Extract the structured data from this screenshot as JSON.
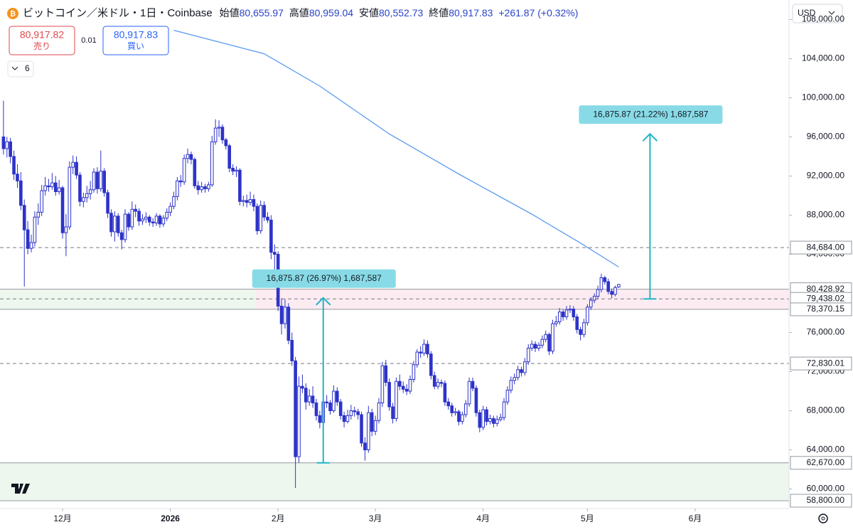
{
  "header": {
    "title": "ビットコイン／米ドル・1日・Coinbase",
    "open_label": "始値",
    "open": "80,655.97",
    "high_label": "高値",
    "high": "80,959.04",
    "low_label": "安値",
    "low": "80,552.73",
    "close_label": "終値",
    "close": "80,917.83",
    "change": "+261.87 (+0.32%)",
    "currency": "USD"
  },
  "order": {
    "sell_price": "80,917.82",
    "sell_label": "売り",
    "spread": "0.01",
    "buy_price": "80,917.83",
    "buy_label": "買い",
    "indicators": "6"
  },
  "chart_data": {
    "type": "candlestick",
    "up_color": "#ffffff",
    "down_color": "#2d33c8",
    "outline_color": "#2d33c8",
    "ylim": [
      58000,
      110000
    ],
    "yticks": [
      {
        "value": 60000,
        "label": "60,000.00"
      },
      {
        "value": 64000,
        "label": "64,000.00"
      },
      {
        "value": 68000,
        "label": "68,000.00"
      },
      {
        "value": 72000,
        "label": "72,000.00"
      },
      {
        "value": 76000,
        "label": "76,000.00"
      },
      {
        "value": 84000,
        "label": "84,000.00"
      },
      {
        "value": 88000,
        "label": "88,000.00"
      },
      {
        "value": 92000,
        "label": "92,000.00"
      },
      {
        "value": 96000,
        "label": "96,000.00"
      },
      {
        "value": 100000,
        "label": "100,000.00"
      },
      {
        "value": 104000,
        "label": "104,000.00"
      },
      {
        "value": 108000,
        "label": "108,000.00"
      }
    ],
    "xlim": [
      -1,
      226
    ],
    "xticks": [
      {
        "value": 17,
        "label": "12月"
      },
      {
        "value": 48,
        "label": "2026"
      },
      {
        "value": 79,
        "label": "2月"
      },
      {
        "value": 107,
        "label": "3月"
      },
      {
        "value": 138,
        "label": "4月"
      },
      {
        "value": 168,
        "label": "5月"
      },
      {
        "value": 199,
        "label": "6月"
      }
    ],
    "candles": [
      [
        96000,
        99700,
        94200,
        94800
      ],
      [
        94800,
        96000,
        93900,
        95500
      ],
      [
        95500,
        95900,
        93300,
        94000
      ],
      [
        94000,
        94600,
        91600,
        92200
      ],
      [
        92200,
        93200,
        90800,
        91500
      ],
      [
        91500,
        92400,
        88500,
        89000
      ],
      [
        89000,
        89600,
        80700,
        86500
      ],
      [
        86500,
        87400,
        84000,
        84600
      ],
      [
        84600,
        86000,
        84200,
        85200
      ],
      [
        85200,
        88400,
        84800,
        87800
      ],
      [
        87800,
        89200,
        87000,
        88300
      ],
      [
        88300,
        91100,
        87900,
        90500
      ],
      [
        90500,
        91900,
        90000,
        91000
      ],
      [
        91000,
        91700,
        90400,
        90900
      ],
      [
        90900,
        92300,
        90600,
        91300
      ],
      [
        91300,
        92000,
        90000,
        90400
      ],
      [
        90400,
        91600,
        90100,
        90800
      ],
      [
        90800,
        91000,
        85600,
        86200
      ],
      [
        86200,
        88100,
        83800,
        86800
      ],
      [
        86800,
        93500,
        86500,
        92900
      ],
      [
        92900,
        94100,
        92200,
        93400
      ],
      [
        93400,
        94000,
        91700,
        92100
      ],
      [
        92100,
        92400,
        88900,
        89400
      ],
      [
        89400,
        90300,
        88800,
        89800
      ],
      [
        89800,
        91000,
        89300,
        90200
      ],
      [
        90200,
        91500,
        89600,
        90600
      ],
      [
        90600,
        92800,
        90300,
        92400
      ],
      [
        92400,
        92900,
        90200,
        90700
      ],
      [
        90700,
        94600,
        90400,
        92500
      ],
      [
        92500,
        92800,
        89900,
        90300
      ],
      [
        90300,
        90600,
        87700,
        88200
      ],
      [
        88200,
        88600,
        85800,
        86300
      ],
      [
        86300,
        88400,
        85300,
        87900
      ],
      [
        87900,
        88200,
        85800,
        86200
      ],
      [
        86200,
        86500,
        84500,
        85500
      ],
      [
        85500,
        88600,
        85200,
        88100
      ],
      [
        88100,
        88300,
        86400,
        86800
      ],
      [
        86800,
        89400,
        86500,
        88600
      ],
      [
        88600,
        89100,
        87800,
        88400
      ],
      [
        88400,
        88700,
        86900,
        87400
      ],
      [
        87400,
        88100,
        87000,
        87600
      ],
      [
        87600,
        88300,
        87200,
        87800
      ],
      [
        87800,
        88000,
        86900,
        87300
      ],
      [
        87300,
        87700,
        86800,
        87200
      ],
      [
        87200,
        88200,
        86900,
        87900
      ],
      [
        87900,
        88100,
        86700,
        87100
      ],
      [
        87100,
        88000,
        86800,
        87700
      ],
      [
        87700,
        88700,
        87400,
        88300
      ],
      [
        88300,
        89300,
        87900,
        88900
      ],
      [
        88900,
        90400,
        88600,
        89900
      ],
      [
        89900,
        91900,
        89500,
        91500
      ],
      [
        91500,
        92100,
        90900,
        91400
      ],
      [
        91400,
        94200,
        91100,
        93800
      ],
      [
        93800,
        94800,
        93300,
        94200
      ],
      [
        94200,
        94500,
        93200,
        93700
      ],
      [
        93700,
        93900,
        90700,
        91000
      ],
      [
        91000,
        91500,
        90100,
        90600
      ],
      [
        90600,
        91400,
        90300,
        90900
      ],
      [
        90900,
        91200,
        90300,
        90700
      ],
      [
        90700,
        91400,
        90400,
        91100
      ],
      [
        91100,
        96100,
        90900,
        95500
      ],
      [
        95500,
        97800,
        95200,
        96900
      ],
      [
        96900,
        97700,
        96000,
        97000
      ],
      [
        97000,
        97300,
        95300,
        95700
      ],
      [
        95700,
        95900,
        94700,
        95100
      ],
      [
        95100,
        95300,
        92400,
        92800
      ],
      [
        92800,
        93200,
        92100,
        92500
      ],
      [
        92500,
        93000,
        91900,
        92600
      ],
      [
        92600,
        92800,
        89000,
        89400
      ],
      [
        89400,
        90000,
        88900,
        89500
      ],
      [
        89500,
        90100,
        88800,
        89300
      ],
      [
        89300,
        90400,
        89000,
        89600
      ],
      [
        89600,
        90100,
        88400,
        88900
      ],
      [
        88900,
        89200,
        86000,
        86400
      ],
      [
        86400,
        89500,
        86100,
        89000
      ],
      [
        89000,
        89400,
        87400,
        87800
      ],
      [
        87800,
        88300,
        87200,
        87500
      ],
      [
        87500,
        88000,
        83500,
        84200
      ],
      [
        84200,
        85000,
        81000,
        84000
      ],
      [
        84000,
        84300,
        78200,
        78700
      ],
      [
        78700,
        79500,
        75800,
        76900
      ],
      [
        76900,
        79400,
        76400,
        78600
      ],
      [
        78600,
        79000,
        74800,
        75200
      ],
      [
        75200,
        76000,
        72600,
        73100
      ],
      [
        73100,
        73500,
        60100,
        63300
      ],
      [
        63300,
        71500,
        62700,
        70500
      ],
      [
        70500,
        71700,
        69800,
        70300
      ],
      [
        70300,
        70800,
        68100,
        68900
      ],
      [
        68900,
        70200,
        68500,
        69500
      ],
      [
        69500,
        70500,
        68300,
        68800
      ],
      [
        68800,
        69200,
        67000,
        67500
      ],
      [
        67500,
        68000,
        66200,
        66800
      ],
      [
        66800,
        69400,
        66500,
        68900
      ],
      [
        68900,
        69600,
        68300,
        68800
      ],
      [
        68800,
        69100,
        67600,
        68000
      ],
      [
        68000,
        70600,
        67800,
        70000
      ],
      [
        70000,
        70400,
        68500,
        68900
      ],
      [
        68900,
        69200,
        67100,
        67500
      ],
      [
        67500,
        67900,
        66300,
        66900
      ],
      [
        66900,
        68100,
        66700,
        67500
      ],
      [
        67500,
        68600,
        67100,
        68000
      ],
      [
        68000,
        68400,
        67400,
        67900
      ],
      [
        67900,
        68200,
        67100,
        67600
      ],
      [
        67600,
        67900,
        64300,
        64700
      ],
      [
        64700,
        65300,
        62900,
        64000
      ],
      [
        64000,
        68500,
        63700,
        67800
      ],
      [
        67800,
        68200,
        65400,
        65900
      ],
      [
        65900,
        67500,
        65500,
        67000
      ],
      [
        67000,
        69300,
        66700,
        68800
      ],
      [
        68800,
        73000,
        68400,
        72600
      ],
      [
        72600,
        73200,
        70500,
        70900
      ],
      [
        70900,
        71300,
        68000,
        68400
      ],
      [
        68400,
        68800,
        66700,
        67200
      ],
      [
        67200,
        71400,
        66900,
        71000
      ],
      [
        71000,
        71700,
        70100,
        70500
      ],
      [
        70500,
        71000,
        69800,
        70200
      ],
      [
        70200,
        70700,
        69600,
        70000
      ],
      [
        70000,
        71600,
        69700,
        71200
      ],
      [
        71200,
        73100,
        70900,
        72700
      ],
      [
        72700,
        74300,
        72400,
        74000
      ],
      [
        74000,
        74600,
        73400,
        73900
      ],
      [
        73900,
        75300,
        73600,
        74800
      ],
      [
        74800,
        75200,
        73400,
        73800
      ],
      [
        73800,
        74100,
        71200,
        71600
      ],
      [
        71600,
        72000,
        70200,
        70500
      ],
      [
        70500,
        71300,
        70200,
        70900
      ],
      [
        70900,
        71200,
        70400,
        70800
      ],
      [
        70800,
        71100,
        68500,
        68900
      ],
      [
        68900,
        69300,
        68100,
        68500
      ],
      [
        68500,
        68800,
        67400,
        67800
      ],
      [
        67800,
        68300,
        67500,
        67900
      ],
      [
        67900,
        68100,
        66500,
        66900
      ],
      [
        66900,
        67900,
        66600,
        67600
      ],
      [
        67600,
        69100,
        67300,
        68700
      ],
      [
        68700,
        71400,
        68400,
        71000
      ],
      [
        71000,
        71400,
        70000,
        70300
      ],
      [
        70300,
        70600,
        67400,
        67800
      ],
      [
        67800,
        68100,
        65800,
        66300
      ],
      [
        66300,
        68500,
        66000,
        68100
      ],
      [
        68100,
        68400,
        66500,
        66900
      ],
      [
        66900,
        67600,
        66600,
        67200
      ],
      [
        67200,
        67500,
        66300,
        66700
      ],
      [
        66700,
        67500,
        66400,
        67100
      ],
      [
        67100,
        67700,
        66900,
        67300
      ],
      [
        67300,
        69300,
        67000,
        68900
      ],
      [
        68900,
        70500,
        68600,
        70100
      ],
      [
        70100,
        71500,
        69800,
        71100
      ],
      [
        71100,
        71800,
        70700,
        71400
      ],
      [
        71400,
        72600,
        71100,
        72200
      ],
      [
        72200,
        72500,
        71500,
        71900
      ],
      [
        71900,
        73400,
        71600,
        73000
      ],
      [
        73000,
        74800,
        72700,
        74400
      ],
      [
        74400,
        75200,
        74100,
        74800
      ],
      [
        74800,
        75100,
        74000,
        74400
      ],
      [
        74400,
        75000,
        74100,
        74700
      ],
      [
        74700,
        75700,
        74400,
        75300
      ],
      [
        75300,
        76200,
        75000,
        75800
      ],
      [
        75800,
        76000,
        73700,
        74100
      ],
      [
        74100,
        77300,
        73800,
        76900
      ],
      [
        76900,
        77700,
        76600,
        77100
      ],
      [
        77100,
        78500,
        76800,
        78100
      ],
      [
        78100,
        78400,
        77200,
        77600
      ],
      [
        77600,
        78700,
        77300,
        78300
      ],
      [
        78300,
        78800,
        78000,
        78400
      ],
      [
        78400,
        78700,
        77200,
        77600
      ],
      [
        77600,
        77900,
        75900,
        76300
      ],
      [
        76300,
        76600,
        75200,
        75800
      ],
      [
        75800,
        77400,
        75500,
        77000
      ],
      [
        77000,
        78900,
        76700,
        78600
      ],
      [
        78600,
        79600,
        78300,
        79300
      ],
      [
        79300,
        80000,
        79000,
        79700
      ],
      [
        79700,
        80800,
        79400,
        80400
      ],
      [
        80400,
        82000,
        80100,
        81600
      ],
      [
        81600,
        81800,
        80900,
        81200
      ],
      [
        81200,
        81500,
        79900,
        80200
      ],
      [
        80200,
        80500,
        79500,
        79900
      ],
      [
        79900,
        80800,
        79700,
        80600
      ],
      [
        80655.97,
        80959.04,
        80552.73,
        80917.83
      ]
    ],
    "moving_average": {
      "color": "#5b9bf0",
      "x": [
        49,
        75,
        91,
        111,
        131,
        152,
        166,
        177
      ],
      "values": [
        106900,
        104500,
        101200,
        96300,
        92200,
        88100,
        85150,
        82700
      ]
    },
    "levels": [
      {
        "value": 84684,
        "label": "84,684.00",
        "style": "dashed"
      },
      {
        "value": 80428.92,
        "label": "80,428.92",
        "style": "solid"
      },
      {
        "value": 79438.02,
        "label": "79,438.02",
        "style": "dashed"
      },
      {
        "value": 78370.15,
        "label": "78,370.15",
        "style": "solid"
      },
      {
        "value": 72830.01,
        "label": "72,830.01",
        "style": "dashed"
      },
      {
        "value": 62670,
        "label": "62,670.00",
        "style": "solid"
      },
      {
        "value": 58800,
        "label": "58,800.00",
        "style": "solid"
      }
    ],
    "measures": [
      {
        "x": 92,
        "from": 62670,
        "to": 79545.87,
        "label": "16,875.87 (26.97%) 1,687,587"
      },
      {
        "x": 186,
        "from": 79438.02,
        "to": 96313.89,
        "label": "16,875.87 (21.22%) 1,687,587"
      }
    ],
    "measure_color": "#1fb5c9"
  }
}
